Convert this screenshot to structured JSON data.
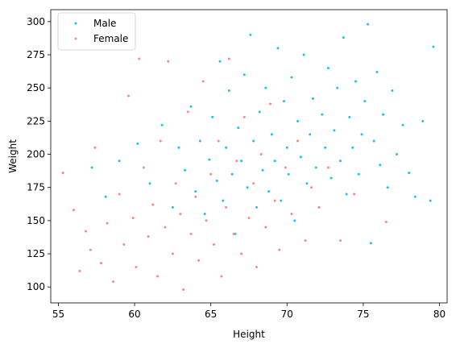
{
  "chart_data": {
    "type": "scatter",
    "title": "",
    "xlabel": "Height",
    "ylabel": "Weight",
    "xlim": [
      54.5,
      80.5
    ],
    "ylim": [
      88,
      309
    ],
    "xticks": [
      55,
      60,
      65,
      70,
      75,
      80
    ],
    "yticks": [
      100,
      125,
      150,
      175,
      200,
      225,
      250,
      275,
      300
    ],
    "grid": false,
    "legend": {
      "position": "upper-left"
    },
    "series": [
      {
        "name": "Male",
        "color": "#1fc3e8",
        "marker_size": 1.5,
        "points": [
          [
            57.2,
            190
          ],
          [
            58.1,
            168
          ],
          [
            59.0,
            195
          ],
          [
            60.2,
            208
          ],
          [
            61.0,
            178
          ],
          [
            61.8,
            222
          ],
          [
            62.5,
            160
          ],
          [
            62.9,
            205
          ],
          [
            63.3,
            188
          ],
          [
            63.7,
            236
          ],
          [
            64.0,
            172
          ],
          [
            64.3,
            210
          ],
          [
            64.6,
            155
          ],
          [
            64.9,
            196
          ],
          [
            65.1,
            228
          ],
          [
            65.4,
            180
          ],
          [
            65.6,
            270
          ],
          [
            65.8,
            165
          ],
          [
            66.0,
            205
          ],
          [
            66.2,
            248
          ],
          [
            66.4,
            185
          ],
          [
            66.6,
            140
          ],
          [
            66.8,
            220
          ],
          [
            67.0,
            195
          ],
          [
            67.2,
            260
          ],
          [
            67.4,
            175
          ],
          [
            67.6,
            290
          ],
          [
            67.8,
            210
          ],
          [
            68.0,
            160
          ],
          [
            68.2,
            232
          ],
          [
            68.4,
            188
          ],
          [
            68.6,
            250
          ],
          [
            68.8,
            172
          ],
          [
            69.0,
            215
          ],
          [
            69.2,
            195
          ],
          [
            69.4,
            280
          ],
          [
            69.6,
            165
          ],
          [
            69.8,
            240
          ],
          [
            70.0,
            205
          ],
          [
            70.1,
            185
          ],
          [
            70.3,
            258
          ],
          [
            70.5,
            150
          ],
          [
            70.7,
            225
          ],
          [
            70.9,
            198
          ],
          [
            71.1,
            275
          ],
          [
            71.3,
            178
          ],
          [
            71.5,
            215
          ],
          [
            71.7,
            242
          ],
          [
            71.9,
            190
          ],
          [
            72.1,
            160
          ],
          [
            72.3,
            230
          ],
          [
            72.5,
            205
          ],
          [
            72.7,
            265
          ],
          [
            72.9,
            182
          ],
          [
            73.1,
            218
          ],
          [
            73.3,
            250
          ],
          [
            73.5,
            195
          ],
          [
            73.7,
            288
          ],
          [
            73.9,
            170
          ],
          [
            74.1,
            228
          ],
          [
            74.3,
            205
          ],
          [
            74.5,
            255
          ],
          [
            74.7,
            185
          ],
          [
            74.9,
            215
          ],
          [
            75.1,
            240
          ],
          [
            75.3,
            298
          ],
          [
            75.5,
            133
          ],
          [
            75.7,
            210
          ],
          [
            75.9,
            262
          ],
          [
            76.1,
            192
          ],
          [
            76.3,
            230
          ],
          [
            76.6,
            175
          ],
          [
            76.9,
            248
          ],
          [
            77.2,
            200
          ],
          [
            77.6,
            222
          ],
          [
            78.0,
            186
          ],
          [
            78.4,
            168
          ],
          [
            78.9,
            225
          ],
          [
            79.6,
            281
          ],
          [
            79.4,
            165
          ]
        ]
      },
      {
        "name": "Female",
        "color": "#f98a80",
        "marker_size": 1.5,
        "points": [
          [
            55.3,
            186
          ],
          [
            56.0,
            158
          ],
          [
            56.4,
            112
          ],
          [
            56.8,
            142
          ],
          [
            57.1,
            128
          ],
          [
            57.4,
            205
          ],
          [
            57.8,
            118
          ],
          [
            58.2,
            148
          ],
          [
            58.6,
            104
          ],
          [
            59.0,
            170
          ],
          [
            59.3,
            132
          ],
          [
            59.6,
            244
          ],
          [
            59.9,
            152
          ],
          [
            60.1,
            115
          ],
          [
            60.3,
            272
          ],
          [
            60.6,
            190
          ],
          [
            60.9,
            138
          ],
          [
            61.2,
            162
          ],
          [
            61.5,
            108
          ],
          [
            61.7,
            210
          ],
          [
            62.0,
            145
          ],
          [
            62.2,
            270
          ],
          [
            62.5,
            125
          ],
          [
            62.7,
            178
          ],
          [
            63.0,
            155
          ],
          [
            63.2,
            98
          ],
          [
            63.5,
            232
          ],
          [
            63.7,
            140
          ],
          [
            64.0,
            168
          ],
          [
            64.2,
            120
          ],
          [
            64.5,
            255
          ],
          [
            64.7,
            150
          ],
          [
            65.0,
            185
          ],
          [
            65.2,
            132
          ],
          [
            65.5,
            210
          ],
          [
            65.7,
            108
          ],
          [
            66.0,
            160
          ],
          [
            66.2,
            272
          ],
          [
            66.5,
            140
          ],
          [
            66.7,
            195
          ],
          [
            67.0,
            125
          ],
          [
            67.2,
            228
          ],
          [
            67.5,
            152
          ],
          [
            67.8,
            178
          ],
          [
            68.0,
            115
          ],
          [
            68.3,
            200
          ],
          [
            68.6,
            145
          ],
          [
            68.9,
            238
          ],
          [
            69.2,
            165
          ],
          [
            69.5,
            128
          ],
          [
            69.9,
            190
          ],
          [
            70.3,
            155
          ],
          [
            70.7,
            210
          ],
          [
            71.2,
            135
          ],
          [
            71.6,
            175
          ],
          [
            72.1,
            160
          ],
          [
            72.7,
            190
          ],
          [
            73.5,
            135
          ],
          [
            74.4,
            170
          ],
          [
            76.5,
            149
          ]
        ]
      }
    ]
  }
}
